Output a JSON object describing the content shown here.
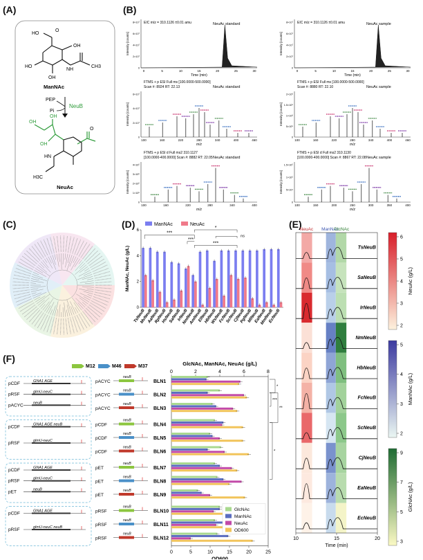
{
  "panels": {
    "a": {
      "label": "(A)",
      "mannac_name": "ManNAc",
      "pep": "PEP",
      "pi": "Pi",
      "enzyme": "NeuB",
      "neuac_name": "NeuAc",
      "atoms": {
        "ho": "HO",
        "oh": "OH",
        "nh": "NH",
        "h3c": "H3C",
        "ch3": "CH3",
        "o": "O",
        "ho2": "HO",
        "oh2": "OH",
        "oh3": "OH",
        "oh4": "OH",
        "ohg": "OH",
        "hn": "HN"
      }
    },
    "b": {
      "label": "(B)",
      "eic_header": "EIC m/z = 310.1126 ±0.01 amu",
      "std_label": "NeuAc  standard",
      "sample_label": "NeuAc  sample",
      "eic_xlabel": "Time (min)",
      "ylabel": "Intensity [counts]",
      "mz_label": "m/z",
      "ms1_std_header": "FTMS + p ESI Full ms  [100.0000-500.0000]",
      "ms1_std_scan": "Scan #: 8924 RT: 22.13",
      "ms1_smp_header": "FTMS + p ESI Full ms  [100.0000-500.0000]",
      "ms1_smp_scan": "Scan #: 8880 RT: 22.10",
      "ms2_std_header": "FTMS + p ESI d Full ms2  310.1127",
      "ms2_std_scan": "[100.0000-400.0000] Scan #: 8882 RT: 22.05",
      "ms2_smp_header": "FTMS + p ESI d Full ms2  310.1130",
      "ms2_smp_scan": "[100.0000-400.0000] Scan #: 8867 RT: 22.08",
      "eic_ticks": [
        "0",
        "5",
        "10",
        "15",
        "20",
        "25",
        "30"
      ],
      "ms1_ticks": [
        "100",
        "160",
        "220",
        "280",
        "340",
        "400",
        "460"
      ],
      "ms2_ticks": [
        "100",
        "160",
        "220",
        "280",
        "340",
        "400"
      ],
      "ms2_smp_ticks": [
        "100",
        "150",
        "200",
        "250",
        "300",
        "350",
        "400"
      ],
      "eic_yticks": [
        "8×10⁷",
        "6×10⁷",
        "4×10⁷",
        "2×10⁷",
        "0"
      ],
      "ms1_yticks": [
        "6×10⁷",
        "4×10⁷",
        "2×10⁷",
        "0"
      ],
      "ms1_smp_yticks": [
        "2×10⁶",
        "1.5×10⁶",
        "1×10⁶",
        "5×10⁵",
        "0"
      ],
      "ms2_yticks": [
        "4×10⁵",
        "3×10⁵",
        "2×10⁵",
        "1×10⁵",
        "0"
      ],
      "ms2_smp_yticks": [
        "1.5×10⁵",
        "1×10⁵",
        "5×10⁴",
        "0"
      ]
    },
    "c": {
      "label": "(C)"
    },
    "d": {
      "label": "(D)",
      "ylabel": "ManNAc, NeuAc (g/L)",
      "sig1": "***",
      "sig2": "***",
      "sig3": "***",
      "sig4": "*",
      "sig5": "ns"
    },
    "e": {
      "label": "(E)",
      "col_neuac": "NeuAc",
      "col_mannac": "ManNAc",
      "col_glcnac": "GlcNAc",
      "xlabel": "Time (min)",
      "xticks": [
        "10",
        "15",
        "20"
      ],
      "bar1_label": "NeuAc (g/L)",
      "bar1_ticks": [
        "6",
        "5",
        "4",
        "3",
        "2"
      ],
      "bar2_label": "ManNAc (g/L)",
      "bar2_ticks": [
        "5",
        "4",
        "3",
        "2"
      ],
      "bar3_label": "GlcNAc (g/L)",
      "bar3_ticks": [
        "9",
        "7",
        "5",
        "3"
      ],
      "traces": [
        "TsNeuB",
        "SaNeuB",
        "IrNeuB",
        "NmNeuB",
        "HbNeuB",
        "FcNeuB",
        "ScNeuB",
        "CjNeuB",
        "EaNeuB",
        "EcNeuB"
      ]
    },
    "f": {
      "label": "(F)",
      "legend": [
        "M12",
        "M46",
        "M37"
      ],
      "top_axis_title": "GlcNAc, ManNAc, NeuAc (g/L)",
      "top_ticks": [
        "0",
        "2",
        "4",
        "6",
        "8"
      ],
      "bottom_ticks": [
        "0",
        "5",
        "10",
        "15",
        "20",
        "25"
      ],
      "od_label": "OD600",
      "series_legend": [
        "GlcNAc",
        "ManNAc",
        "NeuAc",
        "OD600"
      ],
      "constructs": [
        {
          "lines": [
            "pCDF",
            "pRSF",
            "pACYC"
          ],
          "genes": [
            "GNA1  AGE",
            "glmU-neuC",
            "neuB"
          ]
        },
        {
          "lines": [
            "pCDF",
            "pRSF"
          ],
          "genes": [
            "GNA1  AGE      neuB",
            "glmU-neuC"
          ]
        },
        {
          "lines": [
            "pCDF",
            "pRSF",
            "pET"
          ],
          "genes": [
            "GNA1  AGE",
            "glmU-neuC",
            "neuB"
          ]
        },
        {
          "lines": [
            "pCDF",
            "pRSF"
          ],
          "genes": [
            "GNA1  AGE",
            "glmU-neuC      neuB"
          ]
        }
      ],
      "rbs_label": "neuB",
      "sig": [
        "*",
        "***",
        "**",
        "*"
      ]
    }
  },
  "chart_data": [
    {
      "type": "bar",
      "title": "(D)",
      "ylabel": "ManNAc, NeuAc (g/L)",
      "ylim": [
        0,
        6
      ],
      "categories": [
        "TsNeuB",
        "MvNeuB",
        "AaNeuB",
        "RpNeuB",
        "HsNeuB",
        "SaNeuB",
        "IrNeuB",
        "NmNeuB",
        "AmNeuB",
        "ElNeuB",
        "HbNeuB",
        "WsNeuB",
        "FcNeuB",
        "ScNeuB",
        "CjNeuB",
        "PgNeuB",
        "MlNeuB",
        "EaNeuB",
        "MmNeuB",
        "EcNeuB"
      ],
      "series": [
        {
          "name": "ManNAc",
          "values": [
            4.6,
            4.6,
            4.3,
            4.3,
            3.5,
            3.4,
            3.0,
            2.5,
            4.3,
            4.4,
            3.6,
            4.4,
            4.4,
            4.4,
            4.4,
            4.4,
            4.4,
            4.5,
            4.5,
            4.5
          ]
        },
        {
          "name": "NeuAc",
          "values": [
            2.5,
            2.1,
            1.2,
            0.4,
            0.6,
            1.3,
            3.2,
            2.0,
            0.2,
            1.5,
            2.2,
            0.9,
            2.5,
            2.2,
            2.3,
            0.7,
            0.2,
            0.4,
            0.2,
            0.4
          ]
        }
      ]
    },
    {
      "type": "bar",
      "title": "(F)",
      "xlabel_top": "GlcNAc, ManNAc, NeuAc (g/L)",
      "xlabel_bottom": "OD600",
      "xlim_top": [
        0,
        8
      ],
      "xlim_bottom": [
        0,
        25
      ],
      "categories": [
        "BLN1",
        "BLN2",
        "BLN3",
        "BLN4",
        "BLN5",
        "BLN6",
        "BLN7",
        "BLN8",
        "BLN9",
        "BLN10",
        "BLN11",
        "BLN12"
      ],
      "plasmid": [
        "pACYC",
        "pACYC",
        "pACYC",
        "pCDF",
        "pCDF",
        "pCDF",
        "pET",
        "pET",
        "pET",
        "pRSF",
        "pRSF",
        "pRSF"
      ],
      "series": [
        {
          "name": "GlcNAc",
          "unit": "g/L",
          "values": [
            3.0,
            4.0,
            3.4,
            3.6,
            3.2,
            4.1,
            3.6,
            3.8,
            2.2,
            4.0,
            3.6,
            3.8
          ]
        },
        {
          "name": "ManNAc",
          "unit": "g/L",
          "values": [
            2.9,
            3.0,
            3.7,
            4.3,
            3.4,
            3.0,
            4.0,
            4.3,
            2.5,
            4.0,
            4.5,
            4.7
          ]
        },
        {
          "name": "NeuAc",
          "unit": "g/L",
          "values": [
            5.7,
            6.0,
            5.1,
            4.2,
            4.0,
            4.4,
            5.0,
            5.8,
            3.2,
            3.5,
            3.7,
            1.6
          ]
        },
        {
          "name": "OD600",
          "unit": "",
          "values": [
            17.5,
            19.5,
            17.0,
            18.5,
            18.5,
            20.0,
            17.0,
            15.0,
            19.0,
            17.0,
            20.0,
            21.0
          ]
        }
      ]
    }
  ],
  "colors": {
    "mannac": "#7b7ef0",
    "neuac": "#f07a8a",
    "glcnac": "#8cd06a",
    "f_glcnac": "#a9d98f",
    "f_mannac": "#5a6cc0",
    "f_neuac": "#c24aa8",
    "f_od": "#f2c45a",
    "green": "#2e9b3a"
  }
}
